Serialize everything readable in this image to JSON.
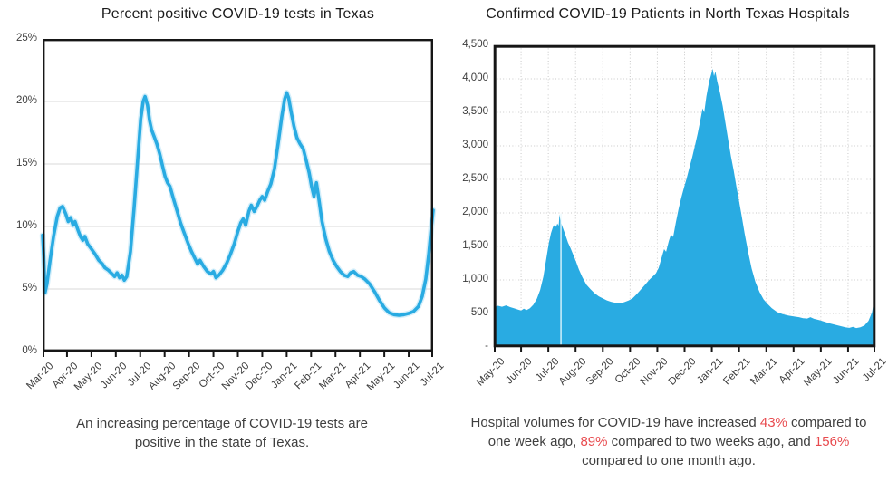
{
  "page": {
    "background": "#ffffff"
  },
  "colors": {
    "accent_blue": "#29abe2",
    "line_glow": "#aee0f5",
    "grid_solid": "#d8d8d8",
    "grid_dotted": "#c9c9c9",
    "axis_black": "#161616",
    "label_gray": "#3d3d3d",
    "caption_gray": "#3f3f3f",
    "highlight_red": "#e84a4e"
  },
  "left_chart": {
    "caption": "An increasing percentage of COVID-19 tests are positive in the state of Texas."
  },
  "right_chart": {
    "caption_segments": [
      {
        "text": "Hospital volumes for COVID-19 have increased ",
        "highlight": false
      },
      {
        "text": "43%",
        "highlight": true
      },
      {
        "text": " compared to one week ago, ",
        "highlight": false
      },
      {
        "text": "89%",
        "highlight": true
      },
      {
        "text": " compared to two weeks ago, and ",
        "highlight": false
      },
      {
        "text": "156%",
        "highlight": true
      },
      {
        "text": " compared to one month ago.",
        "highlight": false
      }
    ]
  },
  "chart_data": [
    {
      "type": "line",
      "title": "Percent positive COVID-19 tests in Texas",
      "xlabel": "",
      "ylabel": "",
      "x_unit": "months (Mar-20 = 0)",
      "xlim": [
        0,
        16
      ],
      "ylim": [
        0,
        25
      ],
      "grid": "horizontal-solid",
      "legend": "none",
      "x_tick_labels": [
        "Mar-20",
        "Apr-20",
        "May-20",
        "Jun-20",
        "Jul-20",
        "Aug-20",
        "Sep-20",
        "Oct-20",
        "Nov-20",
        "Dec-20",
        "Jan-21",
        "Feb-21",
        "Mar-21",
        "Apr-21",
        "May-21",
        "Jun-21",
        "Jul-21"
      ],
      "yticks": [
        0,
        5,
        10,
        15,
        20,
        25
      ],
      "y_tick_labels": [
        "0%",
        "5%",
        "10%",
        "15%",
        "20%",
        "25%"
      ],
      "points": [
        [
          0,
          9.3
        ],
        [
          0.05,
          7.6
        ],
        [
          0.1,
          4.7
        ],
        [
          0.18,
          5.4
        ],
        [
          0.3,
          7.2
        ],
        [
          0.45,
          9.2
        ],
        [
          0.6,
          10.8
        ],
        [
          0.72,
          11.5
        ],
        [
          0.82,
          11.6
        ],
        [
          0.95,
          11.0
        ],
        [
          1.05,
          10.4
        ],
        [
          1.15,
          10.7
        ],
        [
          1.25,
          10.1
        ],
        [
          1.33,
          10.4
        ],
        [
          1.45,
          9.7
        ],
        [
          1.55,
          9.2
        ],
        [
          1.65,
          8.9
        ],
        [
          1.73,
          9.2
        ],
        [
          1.85,
          8.6
        ],
        [
          2.0,
          8.2
        ],
        [
          2.15,
          7.8
        ],
        [
          2.3,
          7.3
        ],
        [
          2.45,
          7.0
        ],
        [
          2.55,
          6.7
        ],
        [
          2.7,
          6.5
        ],
        [
          2.85,
          6.2
        ],
        [
          2.95,
          6.0
        ],
        [
          3.05,
          6.3
        ],
        [
          3.15,
          5.9
        ],
        [
          3.25,
          6.1
        ],
        [
          3.35,
          5.7
        ],
        [
          3.45,
          6.0
        ],
        [
          3.6,
          8.0
        ],
        [
          3.75,
          11.5
        ],
        [
          3.9,
          15.5
        ],
        [
          4.02,
          18.6
        ],
        [
          4.12,
          20.0
        ],
        [
          4.2,
          20.4
        ],
        [
          4.3,
          19.7
        ],
        [
          4.38,
          18.5
        ],
        [
          4.47,
          17.7
        ],
        [
          4.57,
          17.2
        ],
        [
          4.68,
          16.6
        ],
        [
          4.8,
          15.8
        ],
        [
          4.92,
          14.8
        ],
        [
          5.02,
          14.0
        ],
        [
          5.12,
          13.5
        ],
        [
          5.22,
          13.2
        ],
        [
          5.35,
          12.3
        ],
        [
          5.5,
          11.3
        ],
        [
          5.65,
          10.3
        ],
        [
          5.8,
          9.5
        ],
        [
          5.95,
          8.7
        ],
        [
          6.1,
          8.0
        ],
        [
          6.25,
          7.4
        ],
        [
          6.35,
          7.0
        ],
        [
          6.45,
          7.3
        ],
        [
          6.6,
          6.8
        ],
        [
          6.75,
          6.4
        ],
        [
          6.9,
          6.2
        ],
        [
          7.0,
          6.4
        ],
        [
          7.1,
          5.9
        ],
        [
          7.22,
          6.1
        ],
        [
          7.38,
          6.5
        ],
        [
          7.55,
          7.1
        ],
        [
          7.7,
          7.8
        ],
        [
          7.85,
          8.6
        ],
        [
          8.0,
          9.6
        ],
        [
          8.12,
          10.3
        ],
        [
          8.22,
          10.6
        ],
        [
          8.32,
          10.1
        ],
        [
          8.45,
          11.2
        ],
        [
          8.55,
          11.7
        ],
        [
          8.67,
          11.2
        ],
        [
          8.78,
          11.6
        ],
        [
          8.9,
          12.1
        ],
        [
          9.0,
          12.4
        ],
        [
          9.1,
          12.1
        ],
        [
          9.22,
          12.8
        ],
        [
          9.35,
          13.4
        ],
        [
          9.5,
          14.6
        ],
        [
          9.65,
          16.6
        ],
        [
          9.8,
          18.8
        ],
        [
          9.92,
          20.2
        ],
        [
          10.0,
          20.7
        ],
        [
          10.08,
          20.3
        ],
        [
          10.18,
          19.2
        ],
        [
          10.3,
          18.0
        ],
        [
          10.42,
          17.1
        ],
        [
          10.55,
          16.6
        ],
        [
          10.68,
          16.2
        ],
        [
          10.8,
          15.3
        ],
        [
          10.92,
          14.3
        ],
        [
          11.02,
          13.2
        ],
        [
          11.12,
          12.4
        ],
        [
          11.22,
          13.5
        ],
        [
          11.32,
          12.2
        ],
        [
          11.45,
          10.4
        ],
        [
          11.6,
          9.0
        ],
        [
          11.75,
          8.0
        ],
        [
          11.9,
          7.3
        ],
        [
          12.05,
          6.8
        ],
        [
          12.2,
          6.4
        ],
        [
          12.35,
          6.1
        ],
        [
          12.5,
          6.0
        ],
        [
          12.62,
          6.3
        ],
        [
          12.75,
          6.4
        ],
        [
          12.9,
          6.1
        ],
        [
          13.05,
          6.0
        ],
        [
          13.2,
          5.8
        ],
        [
          13.4,
          5.4
        ],
        [
          13.6,
          4.8
        ],
        [
          13.8,
          4.1
        ],
        [
          14.0,
          3.5
        ],
        [
          14.2,
          3.1
        ],
        [
          14.4,
          2.95
        ],
        [
          14.6,
          2.9
        ],
        [
          14.8,
          2.95
        ],
        [
          15.0,
          3.05
        ],
        [
          15.2,
          3.2
        ],
        [
          15.4,
          3.6
        ],
        [
          15.55,
          4.4
        ],
        [
          15.7,
          5.8
        ],
        [
          15.82,
          7.8
        ],
        [
          15.92,
          9.8
        ],
        [
          16,
          11.3
        ]
      ]
    },
    {
      "type": "area",
      "title": "Confirmed COVID-19 Patients in North Texas Hospitals",
      "xlabel": "",
      "ylabel": "",
      "x_unit": "months (May-20 = 0)",
      "xlim": [
        0,
        14
      ],
      "ylim": [
        0,
        4500
      ],
      "grid": "both-dotted",
      "legend": "none",
      "white_gap_x": 2.41,
      "x_tick_labels": [
        "May-20",
        "Jun-20",
        "Jul-20",
        "Aug-20",
        "Sep-20",
        "Oct-20",
        "Nov-20",
        "Dec-20",
        "Jan-21",
        "Feb-21",
        "Mar-21",
        "Apr-21",
        "May-21",
        "Jun-21",
        "Jul-21"
      ],
      "yticks": [
        0,
        500,
        1000,
        1500,
        2000,
        2500,
        3000,
        3500,
        4000,
        4500
      ],
      "y_tick_labels": [
        "-",
        "500",
        "1,000",
        "1,500",
        "2,000",
        "2,500",
        "3,000",
        "3,500",
        "4,000",
        "4,500"
      ],
      "points": [
        [
          0,
          590
        ],
        [
          0.15,
          615
        ],
        [
          0.3,
          600
        ],
        [
          0.45,
          620
        ],
        [
          0.6,
          595
        ],
        [
          0.75,
          575
        ],
        [
          0.9,
          555
        ],
        [
          1.0,
          545
        ],
        [
          1.1,
          570
        ],
        [
          1.2,
          550
        ],
        [
          1.32,
          575
        ],
        [
          1.45,
          630
        ],
        [
          1.58,
          720
        ],
        [
          1.7,
          850
        ],
        [
          1.82,
          1050
        ],
        [
          1.92,
          1300
        ],
        [
          2.02,
          1550
        ],
        [
          2.1,
          1700
        ],
        [
          2.17,
          1790
        ],
        [
          2.23,
          1820
        ],
        [
          2.28,
          1790
        ],
        [
          2.33,
          1840
        ],
        [
          2.38,
          1810
        ],
        [
          2.41,
          1980
        ],
        [
          2.44,
          1890
        ],
        [
          2.52,
          1790
        ],
        [
          2.62,
          1680
        ],
        [
          2.72,
          1560
        ],
        [
          2.82,
          1470
        ],
        [
          2.92,
          1370
        ],
        [
          3.02,
          1270
        ],
        [
          3.12,
          1160
        ],
        [
          3.25,
          1040
        ],
        [
          3.4,
          930
        ],
        [
          3.55,
          860
        ],
        [
          3.7,
          800
        ],
        [
          3.85,
          755
        ],
        [
          4.0,
          725
        ],
        [
          4.15,
          695
        ],
        [
          4.3,
          675
        ],
        [
          4.5,
          655
        ],
        [
          4.65,
          650
        ],
        [
          4.8,
          670
        ],
        [
          4.95,
          695
        ],
        [
          5.1,
          730
        ],
        [
          5.25,
          790
        ],
        [
          5.4,
          860
        ],
        [
          5.55,
          930
        ],
        [
          5.7,
          1000
        ],
        [
          5.85,
          1060
        ],
        [
          5.95,
          1100
        ],
        [
          6.05,
          1180
        ],
        [
          6.15,
          1320
        ],
        [
          6.25,
          1460
        ],
        [
          6.32,
          1420
        ],
        [
          6.42,
          1580
        ],
        [
          6.5,
          1680
        ],
        [
          6.58,
          1640
        ],
        [
          6.68,
          1860
        ],
        [
          6.78,
          2060
        ],
        [
          6.88,
          2230
        ],
        [
          6.98,
          2380
        ],
        [
          7.08,
          2520
        ],
        [
          7.18,
          2680
        ],
        [
          7.28,
          2830
        ],
        [
          7.38,
          3000
        ],
        [
          7.48,
          3180
        ],
        [
          7.58,
          3380
        ],
        [
          7.66,
          3560
        ],
        [
          7.72,
          3500
        ],
        [
          7.8,
          3740
        ],
        [
          7.9,
          3960
        ],
        [
          7.97,
          4060
        ],
        [
          8.03,
          4150
        ],
        [
          8.08,
          4040
        ],
        [
          8.13,
          4110
        ],
        [
          8.2,
          3960
        ],
        [
          8.3,
          3790
        ],
        [
          8.4,
          3590
        ],
        [
          8.5,
          3340
        ],
        [
          8.6,
          3090
        ],
        [
          8.7,
          2850
        ],
        [
          8.8,
          2640
        ],
        [
          8.9,
          2400
        ],
        [
          9.0,
          2180
        ],
        [
          9.1,
          1940
        ],
        [
          9.2,
          1700
        ],
        [
          9.33,
          1420
        ],
        [
          9.46,
          1170
        ],
        [
          9.6,
          970
        ],
        [
          9.75,
          820
        ],
        [
          9.9,
          710
        ],
        [
          10.05,
          640
        ],
        [
          10.2,
          580
        ],
        [
          10.4,
          520
        ],
        [
          10.6,
          490
        ],
        [
          10.8,
          470
        ],
        [
          11.0,
          455
        ],
        [
          11.2,
          445
        ],
        [
          11.35,
          430
        ],
        [
          11.5,
          425
        ],
        [
          11.62,
          445
        ],
        [
          11.75,
          420
        ],
        [
          11.95,
          400
        ],
        [
          12.15,
          375
        ],
        [
          12.35,
          350
        ],
        [
          12.55,
          330
        ],
        [
          12.75,
          310
        ],
        [
          12.92,
          292
        ],
        [
          13.05,
          285
        ],
        [
          13.18,
          300
        ],
        [
          13.3,
          282
        ],
        [
          13.45,
          295
        ],
        [
          13.6,
          320
        ],
        [
          13.75,
          390
        ],
        [
          13.88,
          520
        ],
        [
          13.96,
          700
        ],
        [
          14,
          830
        ]
      ]
    }
  ]
}
